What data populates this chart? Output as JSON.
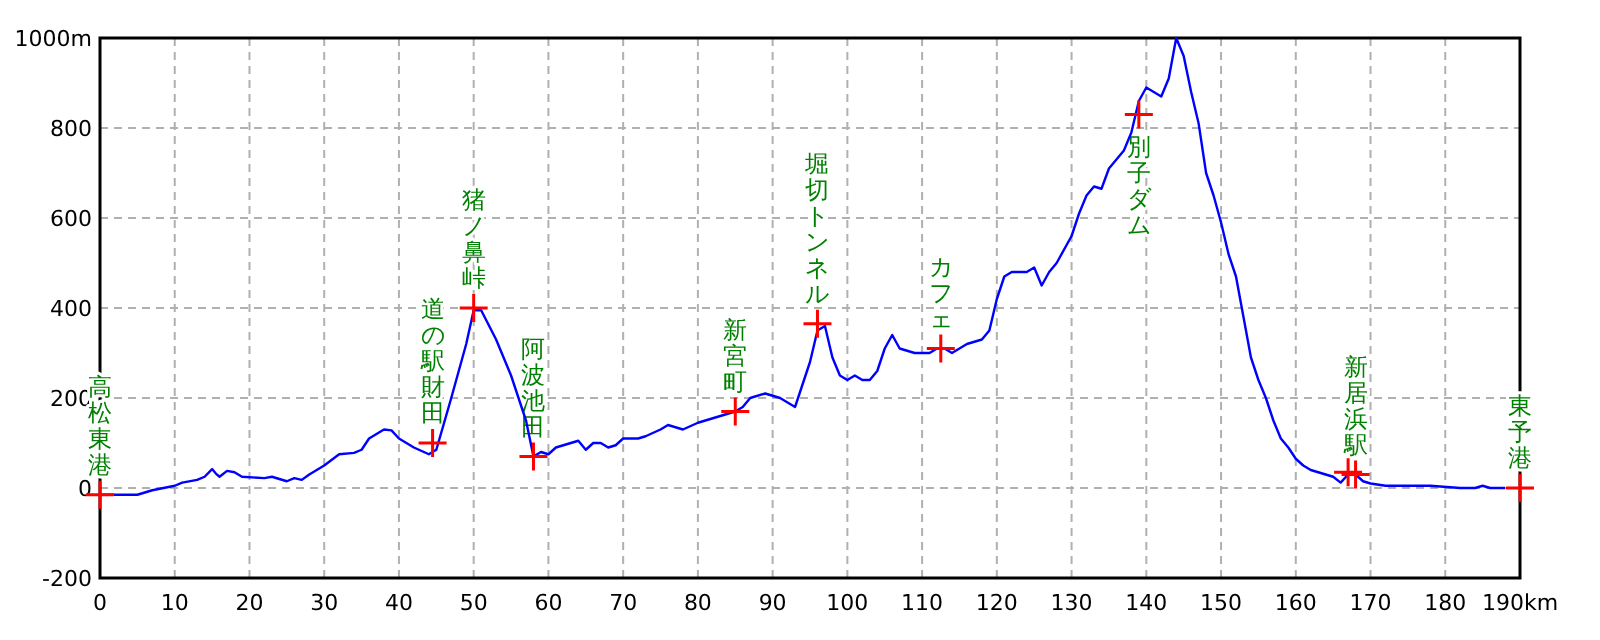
{
  "chart_data": {
    "type": "line",
    "xlim": [
      0,
      190
    ],
    "ylim": [
      -200,
      1000
    ],
    "xticks": [
      0,
      10,
      20,
      30,
      40,
      50,
      60,
      70,
      80,
      90,
      100,
      110,
      120,
      130,
      140,
      150,
      160,
      170,
      180,
      {
        "value": 190,
        "label": "190km"
      }
    ],
    "yticks": [
      -200,
      0,
      200,
      400,
      600,
      800,
      {
        "value": 1000,
        "label": "1000m"
      }
    ],
    "grid": true,
    "line_style": "solid",
    "series": [
      {
        "color": "#0000ff",
        "marker": "none",
        "x": [
          0,
          5,
          7,
          10,
          11,
          13,
          14,
          15,
          15.5,
          16,
          17,
          18,
          19,
          22,
          23,
          24,
          25,
          26,
          27,
          28,
          30,
          32,
          34,
          35,
          36,
          37,
          38,
          39,
          40,
          42,
          44,
          45,
          47,
          49,
          50,
          51,
          53,
          55,
          57,
          58,
          59,
          60,
          61,
          62,
          64,
          65,
          66,
          67,
          68,
          69,
          70,
          72,
          73,
          75,
          76,
          78,
          80,
          82,
          84,
          85,
          86,
          87,
          89,
          91,
          93,
          95,
          96,
          97,
          98,
          99,
          100,
          101,
          102,
          103,
          104,
          105,
          106,
          107,
          109,
          111,
          112,
          113,
          114,
          116,
          118,
          119,
          120,
          121,
          122,
          124,
          125,
          126,
          127,
          128,
          130,
          131,
          132,
          133,
          134,
          135,
          137,
          138,
          139,
          140,
          141,
          142,
          143,
          144,
          145,
          146,
          147,
          148,
          149,
          150,
          151,
          152,
          153,
          154,
          155,
          156,
          157,
          158,
          159,
          160,
          161,
          162,
          163,
          164,
          165,
          166,
          167,
          168,
          169,
          170,
          172,
          175,
          178,
          182,
          184,
          185,
          186,
          188
        ],
        "values": [
          -15,
          -15,
          -5,
          5,
          12,
          18,
          25,
          42,
          32,
          25,
          38,
          35,
          25,
          22,
          25,
          20,
          15,
          22,
          18,
          30,
          50,
          75,
          78,
          85,
          110,
          120,
          130,
          128,
          110,
          90,
          75,
          85,
          200,
          320,
          395,
          395,
          330,
          250,
          150,
          70,
          80,
          75,
          90,
          95,
          105,
          85,
          100,
          100,
          90,
          95,
          110,
          110,
          115,
          130,
          140,
          130,
          145,
          155,
          165,
          170,
          180,
          200,
          210,
          200,
          180,
          280,
          350,
          360,
          290,
          250,
          240,
          250,
          240,
          240,
          260,
          310,
          340,
          310,
          300,
          300,
          310,
          310,
          300,
          320,
          330,
          350,
          420,
          470,
          480,
          480,
          490,
          450,
          480,
          500,
          560,
          610,
          650,
          670,
          665,
          710,
          750,
          790,
          860,
          890,
          880,
          870,
          910,
          1000,
          960,
          880,
          810,
          700,
          650,
          590,
          520,
          470,
          380,
          290,
          240,
          200,
          150,
          110,
          90,
          65,
          50,
          40,
          35,
          30,
          25,
          12,
          30,
          30,
          15,
          10,
          5,
          5,
          5,
          0,
          0,
          5,
          0,
          0
        ]
      },
      {
        "type": "scatter",
        "color": "#ff0000",
        "marker": "cross",
        "x": [
          0,
          44.5,
          50,
          58,
          85,
          96,
          112.5,
          139,
          167,
          168,
          190
        ],
        "values": [
          -15,
          100,
          400,
          70,
          170,
          365,
          310,
          830,
          35,
          30,
          0
        ]
      }
    ],
    "annotations": [
      {
        "text": "高松東港",
        "x": 0,
        "y": -15
      },
      {
        "text": "道の駅財田",
        "x": 44.5,
        "y": 100
      },
      {
        "text": "猪ノ鼻峠",
        "x": 50,
        "y": 400
      },
      {
        "text": "阿波池田",
        "x": 58,
        "y": 70
      },
      {
        "text": "新宮町",
        "x": 85,
        "y": 170
      },
      {
        "text": "堀切トンネル",
        "x": 96,
        "y": 365
      },
      {
        "text": "カフェ",
        "x": 112.5,
        "y": 310
      },
      {
        "text": "別子ダム",
        "x": 139,
        "y": 830
      },
      {
        "text": "新居浜駅",
        "x": 168,
        "y": 30
      },
      {
        "text": "東予港",
        "x": 190,
        "y": 0
      }
    ]
  }
}
